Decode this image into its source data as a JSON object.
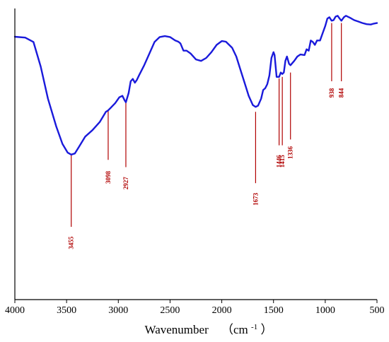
{
  "chart_data": {
    "type": "line",
    "title": "",
    "xlabel": "Wavenumber",
    "xlabel_unit": "（cm",
    "xlabel_unit_sup": "-1",
    "xlabel_unit_close": "）",
    "ylabel": "",
    "xlim": [
      4000,
      500
    ],
    "x_reversed": true,
    "ylim": [
      0,
      100
    ],
    "y_ticks_shown": false,
    "grid": false,
    "x_ticks": [
      4000,
      3500,
      3000,
      2500,
      2000,
      1500,
      1000,
      500
    ],
    "colors": {
      "line": "#1a1adb",
      "annotation": "#b00000",
      "axis": "#000000"
    },
    "series": [
      {
        "values": [
          [
            4000,
            90.3
          ],
          [
            3900,
            90.0
          ],
          [
            3820,
            88.5
          ],
          [
            3750,
            80.0
          ],
          [
            3680,
            69.0
          ],
          [
            3600,
            59.5
          ],
          [
            3540,
            53.5
          ],
          [
            3490,
            50.5
          ],
          [
            3455,
            49.8
          ],
          [
            3420,
            50.2
          ],
          [
            3380,
            52.5
          ],
          [
            3320,
            56.0
          ],
          [
            3250,
            58.2
          ],
          [
            3180,
            61.0
          ],
          [
            3120,
            64.5
          ],
          [
            3098,
            65.0
          ],
          [
            3070,
            66.0
          ],
          [
            3030,
            67.5
          ],
          [
            2990,
            69.5
          ],
          [
            2960,
            70.0
          ],
          [
            2940,
            68.5
          ],
          [
            2927,
            67.8
          ],
          [
            2900,
            71.0
          ],
          [
            2880,
            75.0
          ],
          [
            2860,
            75.8
          ],
          [
            2840,
            74.5
          ],
          [
            2820,
            75.5
          ],
          [
            2800,
            77.0
          ],
          [
            2750,
            80.5
          ],
          [
            2700,
            84.5
          ],
          [
            2650,
            88.5
          ],
          [
            2600,
            90.2
          ],
          [
            2550,
            90.5
          ],
          [
            2500,
            90.2
          ],
          [
            2450,
            89.0
          ],
          [
            2420,
            88.6
          ],
          [
            2400,
            88.0
          ],
          [
            2370,
            85.5
          ],
          [
            2340,
            85.5
          ],
          [
            2300,
            84.5
          ],
          [
            2250,
            82.5
          ],
          [
            2200,
            82.0
          ],
          [
            2150,
            83.0
          ],
          [
            2100,
            85.0
          ],
          [
            2050,
            87.5
          ],
          [
            2000,
            88.8
          ],
          [
            1960,
            88.6
          ],
          [
            1900,
            86.5
          ],
          [
            1860,
            83.5
          ],
          [
            1820,
            79.0
          ],
          [
            1780,
            74.5
          ],
          [
            1740,
            70.0
          ],
          [
            1700,
            66.8
          ],
          [
            1673,
            66.2
          ],
          [
            1650,
            66.6
          ],
          [
            1620,
            69.0
          ],
          [
            1600,
            72.0
          ],
          [
            1580,
            72.6
          ],
          [
            1560,
            74.0
          ],
          [
            1540,
            77.0
          ],
          [
            1520,
            83.0
          ],
          [
            1500,
            85.0
          ],
          [
            1490,
            84.0
          ],
          [
            1470,
            76.5
          ],
          [
            1446,
            76.5
          ],
          [
            1430,
            78.0
          ],
          [
            1415,
            77.5
          ],
          [
            1400,
            78.0
          ],
          [
            1385,
            82.0
          ],
          [
            1370,
            83.5
          ],
          [
            1350,
            81.0
          ],
          [
            1336,
            80.5
          ],
          [
            1300,
            82.0
          ],
          [
            1270,
            83.5
          ],
          [
            1240,
            84.2
          ],
          [
            1200,
            84.0
          ],
          [
            1180,
            86.0
          ],
          [
            1160,
            85.5
          ],
          [
            1140,
            89.0
          ],
          [
            1120,
            88.5
          ],
          [
            1100,
            87.5
          ],
          [
            1080,
            89.0
          ],
          [
            1050,
            89.0
          ],
          [
            1020,
            92.0
          ],
          [
            1000,
            94.0
          ],
          [
            980,
            96.5
          ],
          [
            960,
            97.0
          ],
          [
            938,
            95.8
          ],
          [
            920,
            96.0
          ],
          [
            900,
            97.2
          ],
          [
            880,
            97.5
          ],
          [
            860,
            96.5
          ],
          [
            844,
            95.8
          ],
          [
            820,
            97.0
          ],
          [
            800,
            97.5
          ],
          [
            760,
            96.8
          ],
          [
            720,
            96.0
          ],
          [
            680,
            95.5
          ],
          [
            640,
            95.0
          ],
          [
            600,
            94.6
          ],
          [
            560,
            94.5
          ],
          [
            530,
            94.8
          ],
          [
            500,
            95.0
          ]
        ]
      }
    ],
    "annotations": [
      {
        "label": "3455",
        "x": 3455,
        "y_top": 49.8,
        "y_bottom": 25.0,
        "text_y": 19.5
      },
      {
        "label": "3098",
        "x": 3098,
        "y_top": 65.0,
        "y_bottom": 48.0,
        "text_y": 42.0
      },
      {
        "label": "2927",
        "x": 2927,
        "y_top": 68.0,
        "y_bottom": 45.5,
        "text_y": 40.0
      },
      {
        "label": "1673",
        "x": 1673,
        "y_top": 64.5,
        "y_bottom": 40.0,
        "text_y": 34.5
      },
      {
        "label": "1446",
        "x": 1446,
        "y_top": 76.0,
        "y_bottom": 53.0,
        "text_y": 47.5
      },
      {
        "label": "1415",
        "x": 1415,
        "y_top": 76.5,
        "y_bottom": 53.0,
        "text_y": 47.5
      },
      {
        "label": "1336",
        "x": 1336,
        "y_top": 78.0,
        "y_bottom": 55.0,
        "text_y": 50.5
      },
      {
        "label": "938",
        "x": 938,
        "y_top": 95.0,
        "y_bottom": 75.0,
        "text_y": 71.0
      },
      {
        "label": "844",
        "x": 844,
        "y_top": 95.0,
        "y_bottom": 75.0,
        "text_y": 71.0
      }
    ]
  }
}
